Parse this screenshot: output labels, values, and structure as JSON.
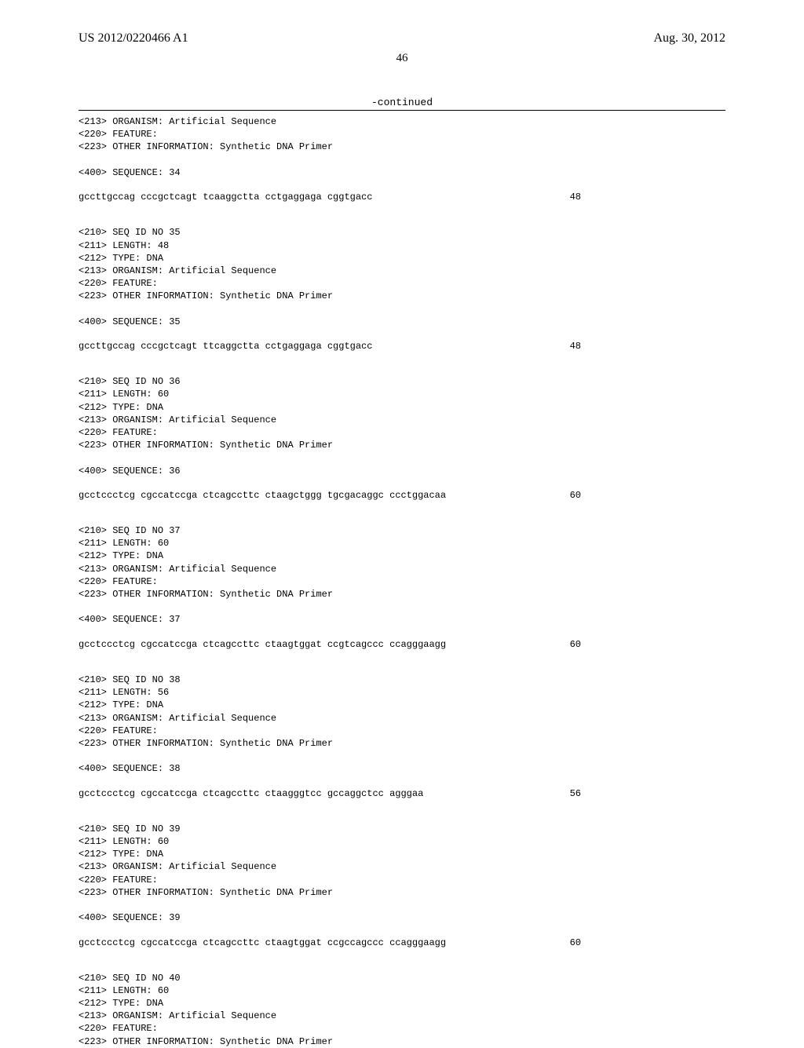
{
  "header": {
    "left": "US 2012/0220466 A1",
    "right": "Aug. 30, 2012"
  },
  "pageNumber": "46",
  "continued": "-continued",
  "blocks": [
    {
      "lines": [
        "<213> ORGANISM: Artificial Sequence",
        "<220> FEATURE:",
        "<223> OTHER INFORMATION: Synthetic DNA Primer",
        "",
        "<400> SEQUENCE: 34"
      ],
      "sequence": "gccttgccag cccgctcagt tcaaggctta cctgaggaga cggtgacc",
      "seqlen": "48"
    },
    {
      "lines": [
        "<210> SEQ ID NO 35",
        "<211> LENGTH: 48",
        "<212> TYPE: DNA",
        "<213> ORGANISM: Artificial Sequence",
        "<220> FEATURE:",
        "<223> OTHER INFORMATION: Synthetic DNA Primer",
        "",
        "<400> SEQUENCE: 35"
      ],
      "sequence": "gccttgccag cccgctcagt ttcaggctta cctgaggaga cggtgacc",
      "seqlen": "48"
    },
    {
      "lines": [
        "<210> SEQ ID NO 36",
        "<211> LENGTH: 60",
        "<212> TYPE: DNA",
        "<213> ORGANISM: Artificial Sequence",
        "<220> FEATURE:",
        "<223> OTHER INFORMATION: Synthetic DNA Primer",
        "",
        "<400> SEQUENCE: 36"
      ],
      "sequence": "gcctccctcg cgccatccga ctcagccttc ctaagctggg tgcgacaggc ccctggacaa",
      "seqlen": "60"
    },
    {
      "lines": [
        "<210> SEQ ID NO 37",
        "<211> LENGTH: 60",
        "<212> TYPE: DNA",
        "<213> ORGANISM: Artificial Sequence",
        "<220> FEATURE:",
        "<223> OTHER INFORMATION: Synthetic DNA Primer",
        "",
        "<400> SEQUENCE: 37"
      ],
      "sequence": "gcctccctcg cgccatccga ctcagccttc ctaagtggat ccgtcagccc ccagggaagg",
      "seqlen": "60"
    },
    {
      "lines": [
        "<210> SEQ ID NO 38",
        "<211> LENGTH: 56",
        "<212> TYPE: DNA",
        "<213> ORGANISM: Artificial Sequence",
        "<220> FEATURE:",
        "<223> OTHER INFORMATION: Synthetic DNA Primer",
        "",
        "<400> SEQUENCE: 38"
      ],
      "sequence": "gcctccctcg cgccatccga ctcagccttc ctaagggtcc gccaggctcc agggaa",
      "seqlen": "56"
    },
    {
      "lines": [
        "<210> SEQ ID NO 39",
        "<211> LENGTH: 60",
        "<212> TYPE: DNA",
        "<213> ORGANISM: Artificial Sequence",
        "<220> FEATURE:",
        "<223> OTHER INFORMATION: Synthetic DNA Primer",
        "",
        "<400> SEQUENCE: 39"
      ],
      "sequence": "gcctccctcg cgccatccga ctcagccttc ctaagtggat ccgccagccc ccagggaagg",
      "seqlen": "60"
    },
    {
      "lines": [
        "<210> SEQ ID NO 40",
        "<211> LENGTH: 60",
        "<212> TYPE: DNA",
        "<213> ORGANISM: Artificial Sequence",
        "<220> FEATURE:",
        "<223> OTHER INFORMATION: Synthetic DNA Primer"
      ],
      "sequence": "",
      "seqlen": ""
    }
  ]
}
